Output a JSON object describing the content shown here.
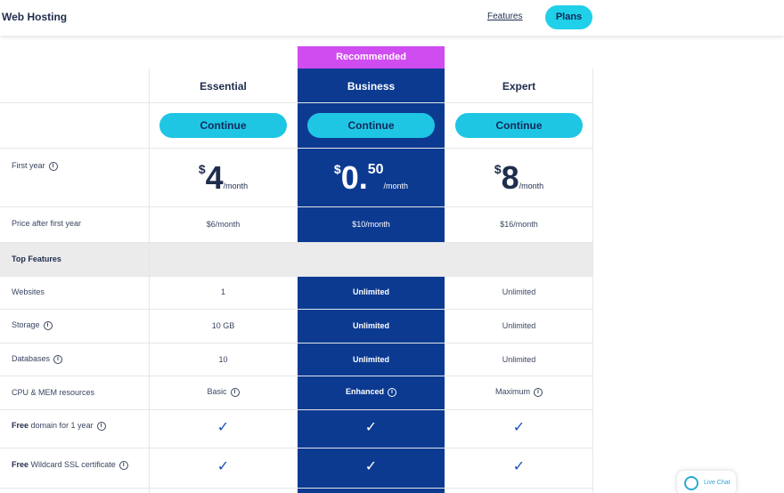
{
  "header": {
    "brand": "Web Hosting",
    "features_link": "Features",
    "plans_button": "Plans"
  },
  "ribbon": "Recommended",
  "plans": [
    {
      "name": "Essential",
      "button": "Continue",
      "price_currency": "$",
      "price_amount": "4",
      "price_decimal": "",
      "price_period": "/month",
      "after_first_year": "$6/month"
    },
    {
      "name": "Business",
      "button": "Continue",
      "price_currency": "$",
      "price_amount": "0.",
      "price_decimal": "50",
      "price_period": "/month",
      "after_first_year": "$10/month"
    },
    {
      "name": "Expert",
      "button": "Continue",
      "price_currency": "$",
      "price_amount": "8",
      "price_decimal": "",
      "price_period": "/month",
      "after_first_year": "$16/month"
    }
  ],
  "rows": {
    "first_year": "First year",
    "price_after": "Price after first year",
    "top_features": "Top Features",
    "websites": "Websites",
    "storage": "Storage",
    "databases": "Databases",
    "cpu_mem": "CPU & MEM resources",
    "free_domain_bold": "Free",
    "free_domain_rest": "domain for 1 year",
    "free_ssl_bold": "Free",
    "free_ssl_rest": "Wildcard SSL certificate"
  },
  "values": {
    "websites": [
      "1",
      "Unlimited",
      "Unlimited"
    ],
    "storage": [
      "10 GB",
      "Unlimited",
      "Unlimited"
    ],
    "databases": [
      "10",
      "Unlimited",
      "Unlimited"
    ],
    "cpu_mem": [
      "Basic",
      "Enhanced",
      "Maximum"
    ]
  },
  "check_glyph": "✓",
  "info_glyph": "i",
  "live_chat": "Live Chat",
  "colors": {
    "accent": "#1fc6e4",
    "business": "#0c3a91",
    "ribbon": "#cf4cf0",
    "section": "#ebebeb"
  }
}
